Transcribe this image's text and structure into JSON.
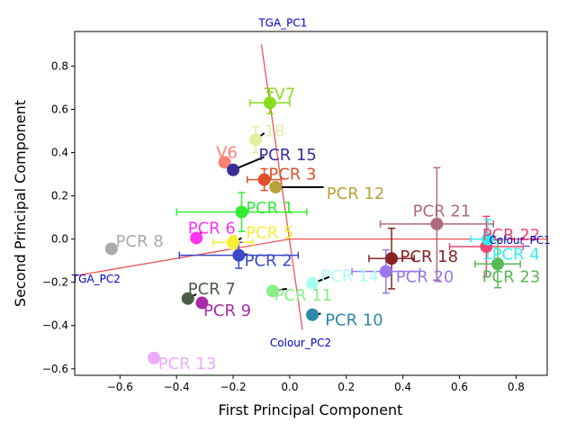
{
  "chart_data": {
    "type": "scatter",
    "xlabel": "First Principal Component",
    "ylabel": "Second Principal Component",
    "xlim": [
      -0.76,
      0.91
    ],
    "ylim": [
      -0.63,
      0.96
    ],
    "x_ticks": [
      -0.6,
      -0.4,
      -0.2,
      0.0,
      0.2,
      0.4,
      0.6,
      0.8
    ],
    "x_tick_labels": [
      "−0.6",
      "−0.4",
      "−0.2",
      "0.0",
      "0.2",
      "0.4",
      "0.6",
      "0.8"
    ],
    "y_ticks": [
      -0.6,
      -0.4,
      -0.2,
      0.0,
      0.2,
      0.4,
      0.6,
      0.8
    ],
    "y_tick_labels": [
      "−0.6",
      "−0.4",
      "−0.2",
      "0.0",
      "0.2",
      "0.4",
      "0.6",
      "0.8"
    ],
    "reference_lines": [
      {
        "x1": -0.1,
        "y1": 0.9,
        "x2": 0.045,
        "y2": -0.42,
        "color": "#ee5555"
      },
      {
        "x1": -0.76,
        "y1": -0.17,
        "x2": 0.0,
        "y2": 0.0,
        "color": "#ee5555"
      },
      {
        "x1": 0.0,
        "y1": 0.0,
        "x2": 0.91,
        "y2": 0.0,
        "color": "#ee5555"
      }
    ],
    "reference_labels": [
      {
        "text": "TGA_PC1",
        "x": -0.11,
        "y": 1.0
      },
      {
        "text": "TGA_PC2",
        "x": -0.77,
        "y": -0.185
      },
      {
        "text": "Colour_PC1",
        "x": 0.705,
        "y": -0.005
      },
      {
        "text": "Colour_PC2",
        "x": -0.07,
        "y": -0.48
      }
    ],
    "points": [
      {
        "label": "TV7",
        "x": -0.07,
        "y": 0.63,
        "color": "#88dd22",
        "label_color": "#88dd22",
        "xerr": 0.07,
        "yerr": 0.05,
        "lx": -0.09,
        "ly": 0.67,
        "lead": null
      },
      {
        "label": "18",
        "x": -0.12,
        "y": 0.46,
        "color": "#ddf0a0",
        "label_color": "#ddf0a0",
        "xerr": 0,
        "yerr": 0.06,
        "lx": -0.09,
        "ly": 0.5,
        "lead": [
          -0.09,
          0.49
        ]
      },
      {
        "label": "V6",
        "x": -0.23,
        "y": 0.355,
        "color": "#fa8072",
        "label_color": "#fa8072",
        "xerr": 0,
        "yerr": 0,
        "lx": -0.26,
        "ly": 0.4,
        "lead": [
          -0.23,
          0.375
        ]
      },
      {
        "label": "PCR 15",
        "x": -0.2,
        "y": 0.32,
        "color": "#3a2e9a",
        "label_color": "#3a2e9a",
        "xerr": 0,
        "yerr": 0,
        "lx": -0.11,
        "ly": 0.39,
        "lead": [
          -0.09,
          0.38
        ]
      },
      {
        "label": "PCR 3",
        "x": -0.09,
        "y": 0.275,
        "color": "#e0502a",
        "label_color": "#e0502a",
        "xerr": 0.06,
        "yerr": 0.05,
        "lx": -0.075,
        "ly": 0.3,
        "lead": null
      },
      {
        "label": "PCR 12",
        "x": -0.05,
        "y": 0.24,
        "color": "#b8a13a",
        "label_color": "#b8a13a",
        "xerr": 0,
        "yerr": 0,
        "lx": 0.13,
        "ly": 0.21,
        "lead": [
          0.12,
          0.24
        ]
      },
      {
        "label": "PCR 1",
        "x": -0.17,
        "y": 0.125,
        "color": "#33ee33",
        "label_color": "#33ee33",
        "xerr": 0.23,
        "yerr": 0.09,
        "lx": -0.155,
        "ly": 0.145,
        "lead": null
      },
      {
        "label": "PCR 6",
        "x": -0.33,
        "y": 0.005,
        "color": "#ff33ee",
        "label_color": "#ff33ee",
        "xerr": 0,
        "yerr": 0,
        "lx": -0.36,
        "ly": 0.05,
        "lead": [
          -0.31,
          0.035
        ]
      },
      {
        "label": "PCR 5",
        "x": -0.2,
        "y": -0.015,
        "color": "#f5ee33",
        "label_color": "#f5ee33",
        "xerr": 0.07,
        "yerr": 0.03,
        "lx": -0.155,
        "ly": 0.03,
        "lead": [
          -0.17,
          0.005
        ]
      },
      {
        "label": "PCR 8",
        "x": -0.63,
        "y": -0.045,
        "color": "#aaaaaa",
        "label_color": "#aaaaaa",
        "xerr": 0,
        "yerr": 0,
        "lx": -0.615,
        "ly": -0.01,
        "lead": null
      },
      {
        "label": "PCR 2",
        "x": -0.18,
        "y": -0.075,
        "color": "#3b48c8",
        "label_color": "#3b48c8",
        "xerr": 0.21,
        "yerr": 0.06,
        "lx": -0.16,
        "ly": -0.1,
        "lead": [
          -0.15,
          -0.07
        ]
      },
      {
        "label": "PCR 7",
        "x": -0.36,
        "y": -0.275,
        "color": "#4a5e44",
        "label_color": "#4a5e44",
        "xerr": 0,
        "yerr": 0,
        "lx": -0.36,
        "ly": -0.23,
        "lead": [
          -0.33,
          -0.255
        ]
      },
      {
        "label": "PCR 9",
        "x": -0.31,
        "y": -0.295,
        "color": "#aa2aaa",
        "label_color": "#aa2aaa",
        "xerr": 0,
        "yerr": 0,
        "lx": -0.305,
        "ly": -0.33,
        "lead": null
      },
      {
        "label": "PCR 11",
        "x": -0.06,
        "y": -0.24,
        "color": "#88ee88",
        "label_color": "#88ee88",
        "xerr": 0,
        "yerr": 0,
        "lx": -0.055,
        "ly": -0.26,
        "lead": [
          -0.01,
          -0.23
        ]
      },
      {
        "label": "PCR 14",
        "x": 0.08,
        "y": -0.205,
        "color": "#aaffee",
        "label_color": "#aaffee",
        "xerr": 0,
        "yerr": 0,
        "lx": 0.11,
        "ly": -0.17,
        "lead": [
          0.14,
          -0.175
        ]
      },
      {
        "label": "PCR 10",
        "x": 0.08,
        "y": -0.35,
        "color": "#2a8aaa",
        "label_color": "#2a8aaa",
        "xerr": 0,
        "yerr": 0,
        "lx": 0.125,
        "ly": -0.375,
        "lead": [
          0.11,
          -0.345
        ]
      },
      {
        "label": "PCR 13",
        "x": -0.48,
        "y": -0.55,
        "color": "#eeaaff",
        "label_color": "#eeaaff",
        "xerr": 0,
        "yerr": 0,
        "lx": -0.465,
        "ly": -0.575,
        "lead": [
          -0.47,
          -0.545
        ]
      },
      {
        "label": "PCR 18",
        "x": 0.36,
        "y": -0.09,
        "color": "#882222",
        "label_color": "#882222",
        "xerr": 0.08,
        "yerr": 0.14,
        "lx": 0.39,
        "ly": -0.08,
        "lead": null
      },
      {
        "label": "PCR 20",
        "x": 0.34,
        "y": -0.15,
        "color": "#9977ee",
        "label_color": "#9977ee",
        "xerr": 0.12,
        "yerr": 0.1,
        "lx": 0.375,
        "ly": -0.175,
        "lead": null
      },
      {
        "label": "PCR 21",
        "x": 0.52,
        "y": 0.07,
        "color": "#b06a7a",
        "label_color": "#b06a7a",
        "xerr": 0.2,
        "yerr": 0.26,
        "lx": 0.435,
        "ly": 0.13,
        "lead": [
          0.525,
          0.095
        ]
      },
      {
        "label": "PCR 22",
        "x": 0.695,
        "y": -0.035,
        "color": "#ee4477",
        "label_color": "#ee4477",
        "xerr": 0.13,
        "yerr": 0.14,
        "lx": 0.68,
        "ly": 0.02,
        "lead": null
      },
      {
        "label": "PCR 4",
        "x": 0.7,
        "y": 0.0,
        "color": "#33eeee",
        "label_color": "#33eeee",
        "xerr": 0.06,
        "yerr": 0.09,
        "lx": 0.715,
        "ly": -0.07,
        "lead": null
      },
      {
        "label": "PCR 23",
        "x": 0.735,
        "y": -0.115,
        "color": "#55bb55",
        "label_color": "#55bb55",
        "xerr": 0.08,
        "yerr": 0.11,
        "lx": 0.68,
        "ly": -0.175,
        "lead": null
      }
    ]
  }
}
